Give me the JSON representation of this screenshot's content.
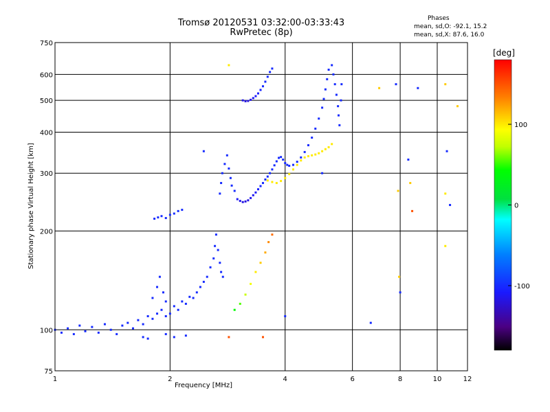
{
  "chart_data": {
    "type": "scatter",
    "title": "Tromsø 20120531 03:32:00-03:33:43",
    "subtitle": "RwPretec (8p)",
    "xlabel": "Frequency [MHz]",
    "ylabel": "Stationary phase Virtual Height [km]",
    "x_scale": "log",
    "y_scale": "log",
    "xlim": [
      1,
      12
    ],
    "ylim": [
      75,
      750
    ],
    "x_ticks": [
      1,
      2,
      4,
      6,
      8,
      10,
      12
    ],
    "y_ticks": [
      75,
      100,
      200,
      300,
      400,
      500,
      600,
      750
    ],
    "grid": true,
    "phases_stats": {
      "title": "Phases",
      "o_mode": "mean, sd,O:  -92.1,  15.2",
      "x_mode": "mean, sd,X:   87.6,  16.0"
    },
    "colorbar": {
      "unit": "[deg]",
      "range": [
        -180,
        180
      ],
      "ticks": [
        100,
        0,
        -100
      ]
    },
    "series": [
      {
        "values": [
          [
            1.0,
            100,
            -100
          ],
          [
            1.04,
            98,
            -100
          ],
          [
            1.08,
            101,
            -100
          ],
          [
            1.12,
            97,
            -100
          ],
          [
            1.16,
            103,
            -100
          ],
          [
            1.2,
            99,
            -100
          ],
          [
            1.25,
            102,
            -100
          ],
          [
            1.3,
            98,
            -100
          ],
          [
            1.35,
            104,
            -100
          ],
          [
            1.4,
            100,
            -100
          ],
          [
            1.45,
            97,
            -100
          ],
          [
            1.5,
            103,
            -100
          ],
          [
            1.55,
            105,
            -100
          ],
          [
            1.6,
            101,
            -100
          ],
          [
            1.65,
            107,
            -100
          ],
          [
            1.7,
            104,
            -100
          ],
          [
            1.75,
            110,
            -100
          ],
          [
            1.8,
            108,
            -100
          ],
          [
            1.85,
            112,
            -100
          ],
          [
            1.9,
            115,
            -100
          ],
          [
            1.95,
            110,
            -100
          ],
          [
            2.0,
            112,
            -100
          ],
          [
            2.05,
            118,
            -100
          ],
          [
            2.1,
            115,
            -100
          ],
          [
            2.15,
            122,
            -100
          ],
          [
            2.2,
            120,
            -100
          ],
          [
            2.25,
            126,
            -100
          ],
          [
            2.3,
            125,
            -100
          ],
          [
            2.35,
            130,
            -100
          ],
          [
            2.4,
            135,
            -100
          ],
          [
            2.45,
            140,
            -100
          ],
          [
            2.5,
            145,
            -100
          ],
          [
            2.55,
            155,
            -100
          ],
          [
            2.6,
            165,
            -100
          ],
          [
            2.62,
            180,
            -100
          ],
          [
            2.64,
            195,
            -100
          ],
          [
            2.67,
            175,
            -100
          ],
          [
            2.7,
            160,
            -100
          ],
          [
            2.72,
            150,
            -100
          ],
          [
            2.75,
            145,
            -100
          ],
          [
            1.8,
            125,
            -100
          ],
          [
            1.85,
            135,
            -100
          ],
          [
            1.88,
            145,
            -100
          ],
          [
            1.92,
            130,
            -100
          ],
          [
            1.95,
            122,
            -100
          ],
          [
            1.7,
            95,
            -100
          ],
          [
            1.75,
            94,
            -100
          ],
          [
            1.95,
            97,
            -100
          ],
          [
            2.05,
            95,
            -100
          ],
          [
            2.2,
            96,
            -100
          ],
          [
            1.82,
            218,
            -100
          ],
          [
            1.86,
            220,
            -100
          ],
          [
            1.9,
            222,
            -100
          ],
          [
            1.95,
            219,
            -100
          ],
          [
            2.0,
            224,
            -100
          ],
          [
            2.05,
            226,
            -100
          ],
          [
            2.1,
            230,
            -100
          ],
          [
            2.15,
            232,
            -100
          ]
        ]
      },
      {
        "values": [
          [
            2.7,
            260,
            -100
          ],
          [
            2.72,
            280,
            -100
          ],
          [
            2.74,
            300,
            -100
          ],
          [
            2.78,
            320,
            -100
          ],
          [
            2.82,
            340,
            -100
          ],
          [
            2.85,
            310,
            -100
          ],
          [
            2.88,
            290,
            -100
          ],
          [
            2.9,
            275,
            -100
          ],
          [
            2.95,
            265,
            -100
          ],
          [
            3.0,
            250,
            -110
          ],
          [
            3.05,
            247,
            -115
          ],
          [
            3.1,
            245,
            -118
          ],
          [
            3.15,
            246,
            -118
          ],
          [
            3.2,
            248,
            -118
          ],
          [
            3.25,
            252,
            -115
          ],
          [
            3.3,
            257,
            -112
          ],
          [
            3.35,
            262,
            -110
          ],
          [
            3.4,
            268,
            -105
          ],
          [
            3.45,
            274,
            -102
          ],
          [
            3.5,
            280,
            -100
          ],
          [
            3.55,
            287,
            -100
          ],
          [
            3.6,
            293,
            -100
          ],
          [
            3.65,
            300,
            -100
          ],
          [
            3.7,
            308,
            -100
          ],
          [
            3.75,
            317,
            -100
          ],
          [
            3.8,
            326,
            -100
          ],
          [
            3.85,
            334,
            -100
          ],
          [
            3.9,
            336,
            -100
          ],
          [
            3.95,
            330,
            -100
          ],
          [
            4.0,
            322,
            -100
          ],
          [
            4.05,
            318,
            -100
          ],
          [
            4.1,
            316,
            -100
          ],
          [
            4.2,
            318,
            -100
          ],
          [
            4.3,
            325,
            -100
          ],
          [
            4.4,
            335,
            -100
          ],
          [
            4.5,
            348,
            -100
          ],
          [
            4.6,
            365,
            -100
          ],
          [
            4.7,
            385,
            -100
          ],
          [
            4.8,
            410,
            -100
          ],
          [
            4.9,
            440,
            -100
          ],
          [
            5.0,
            475,
            -100
          ],
          [
            5.05,
            505,
            -100
          ],
          [
            5.1,
            540,
            -100
          ],
          [
            5.15,
            580,
            -100
          ],
          [
            5.2,
            620,
            -100
          ]
        ]
      },
      {
        "values": [
          [
            3.1,
            500,
            -115
          ],
          [
            3.15,
            497,
            -118
          ],
          [
            3.2,
            498,
            -118
          ],
          [
            3.25,
            502,
            -115
          ],
          [
            3.3,
            508,
            -112
          ],
          [
            3.35,
            515,
            -110
          ],
          [
            3.4,
            525,
            -106
          ],
          [
            3.45,
            538,
            -103
          ],
          [
            3.5,
            552,
            -100
          ],
          [
            3.55,
            570,
            -100
          ],
          [
            3.6,
            590,
            -100
          ],
          [
            3.65,
            610,
            -100
          ],
          [
            3.7,
            625,
            -100
          ]
        ]
      },
      {
        "values": [
          [
            3.6,
            285,
            100
          ],
          [
            3.7,
            282,
            100
          ],
          [
            3.8,
            280,
            100
          ],
          [
            3.9,
            284,
            100
          ],
          [
            4.0,
            290,
            100
          ],
          [
            4.1,
            298,
            100
          ],
          [
            4.2,
            308,
            100
          ],
          [
            4.3,
            318,
            100
          ],
          [
            4.4,
            328,
            100
          ],
          [
            4.5,
            335,
            100
          ],
          [
            4.6,
            338,
            100
          ],
          [
            4.7,
            340,
            100
          ],
          [
            4.8,
            342,
            100
          ],
          [
            4.9,
            345,
            100
          ],
          [
            5.0,
            350,
            100
          ],
          [
            5.1,
            355,
            100
          ],
          [
            5.2,
            360,
            100
          ],
          [
            5.3,
            368,
            100
          ]
        ]
      },
      {
        "values": [
          [
            2.95,
            115,
            40
          ],
          [
            3.05,
            120,
            55
          ],
          [
            3.15,
            128,
            75
          ],
          [
            3.25,
            138,
            90
          ],
          [
            3.35,
            150,
            100
          ],
          [
            3.45,
            160,
            110
          ],
          [
            3.55,
            172,
            120
          ],
          [
            3.62,
            185,
            130
          ],
          [
            3.7,
            195,
            140
          ]
        ]
      },
      {
        "values": [
          [
            5.3,
            640,
            -100
          ],
          [
            5.35,
            600,
            -100
          ],
          [
            5.4,
            560,
            -100
          ],
          [
            5.45,
            520,
            -100
          ],
          [
            5.5,
            480,
            -100
          ],
          [
            5.52,
            450,
            -100
          ],
          [
            5.55,
            420,
            -100
          ],
          [
            5.6,
            500,
            -100
          ],
          [
            5.62,
            560,
            -100
          ]
        ]
      },
      {
        "values": [
          [
            7.05,
            545,
            110
          ],
          [
            7.8,
            560,
            -100
          ],
          [
            7.9,
            265,
            110
          ],
          [
            7.95,
            145,
            110
          ],
          [
            8.0,
            130,
            -100
          ],
          [
            8.4,
            330,
            -100
          ],
          [
            8.5,
            280,
            110
          ],
          [
            8.6,
            230,
            150
          ],
          [
            8.9,
            545,
            -100
          ],
          [
            10.5,
            260,
            100
          ],
          [
            10.5,
            180,
            100
          ],
          [
            10.5,
            560,
            110
          ],
          [
            10.6,
            350,
            -100
          ],
          [
            10.8,
            240,
            -100
          ],
          [
            11.3,
            480,
            110
          ],
          [
            6.7,
            105,
            -100
          ],
          [
            4.0,
            110,
            -100
          ],
          [
            5.0,
            300,
            -100
          ],
          [
            2.45,
            350,
            -100
          ],
          [
            2.85,
            640,
            100
          ],
          [
            3.5,
            95,
            150
          ],
          [
            2.85,
            95,
            150
          ]
        ]
      }
    ]
  }
}
